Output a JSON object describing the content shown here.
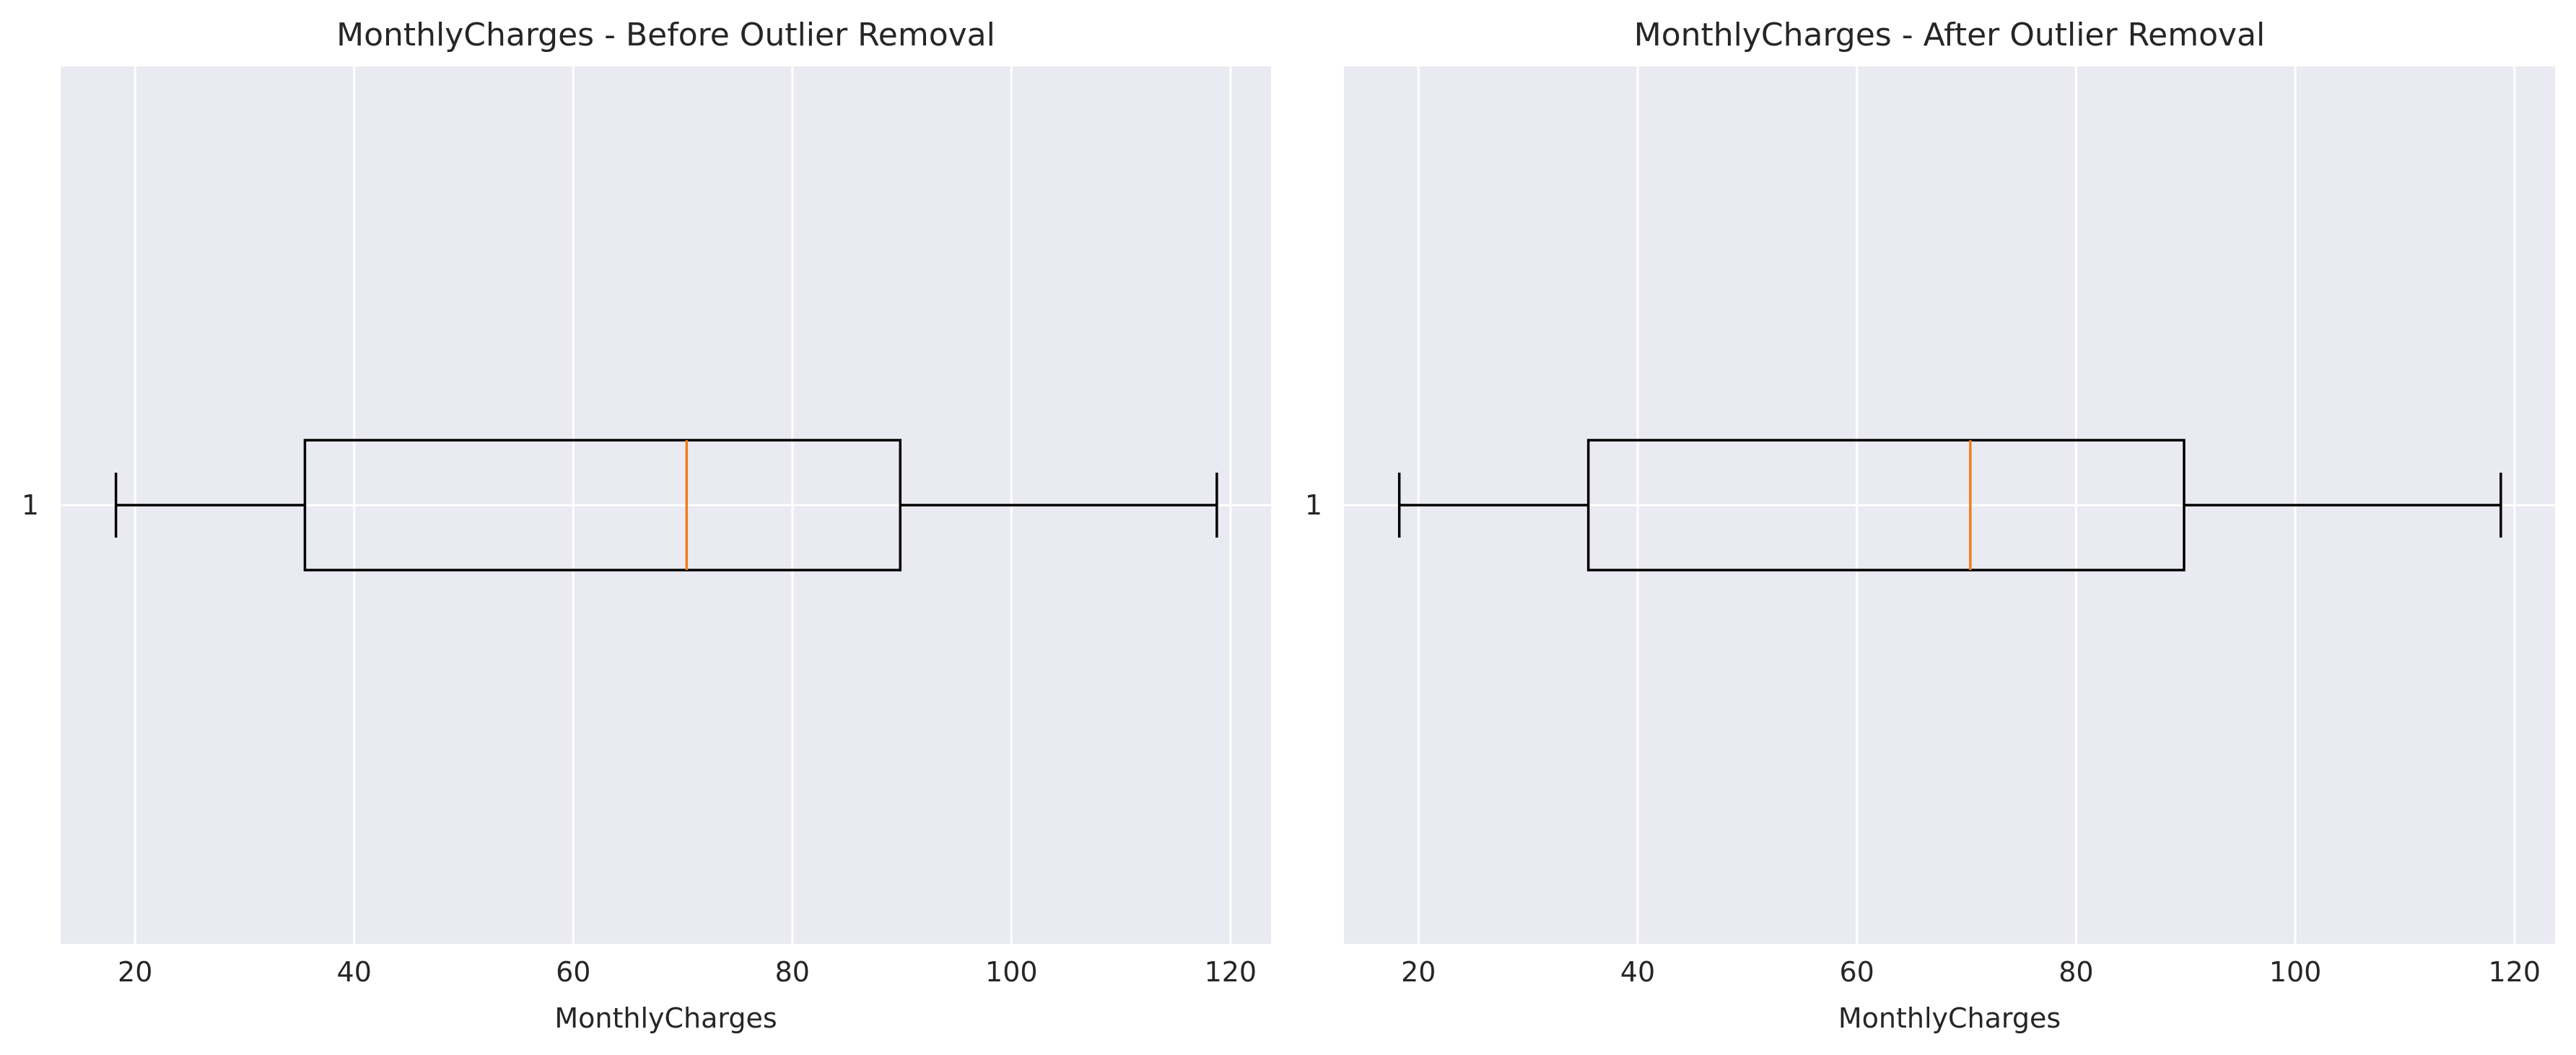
{
  "chart_data": [
    {
      "type": "boxplot",
      "orientation": "horizontal",
      "title": "MonthlyCharges - Before Outlier Removal",
      "xlabel": "MonthlyCharges",
      "ylabel": "",
      "xlim": [
        13.2,
        123.7
      ],
      "xticks": [
        20,
        40,
        60,
        80,
        100,
        120
      ],
      "xtick_labels": [
        "20",
        "40",
        "60",
        "80",
        "100",
        "120"
      ],
      "categories": [
        "1"
      ],
      "grid": true,
      "boxes": [
        {
          "label": "1",
          "whisker_low": 18.25,
          "q1": 35.5,
          "median": 70.35,
          "q3": 89.85,
          "whisker_high": 118.75,
          "outliers": []
        }
      ]
    },
    {
      "type": "boxplot",
      "orientation": "horizontal",
      "title": "MonthlyCharges - After Outlier Removal",
      "xlabel": "MonthlyCharges",
      "ylabel": "",
      "xlim": [
        13.2,
        123.7
      ],
      "xticks": [
        20,
        40,
        60,
        80,
        100,
        120
      ],
      "xtick_labels": [
        "20",
        "40",
        "60",
        "80",
        "100",
        "120"
      ],
      "categories": [
        "1"
      ],
      "grid": true,
      "boxes": [
        {
          "label": "1",
          "whisker_low": 18.25,
          "q1": 35.5,
          "median": 70.35,
          "q3": 89.85,
          "whisker_high": 118.75,
          "outliers": []
        }
      ]
    }
  ],
  "colors": {
    "plot_background": "#eaeaf2",
    "grid": "#ffffff",
    "box_edge": "#000000",
    "median": "#f07d1a",
    "text": "#262626"
  }
}
